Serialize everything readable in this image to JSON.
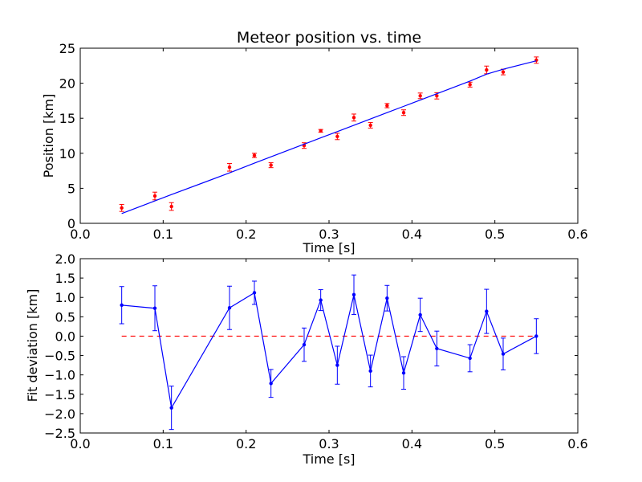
{
  "chart_data": [
    {
      "type": "scatter",
      "title": "Meteor position vs. time",
      "xlabel": "Time [s]",
      "ylabel": "Position [km]",
      "xlim": [
        0.0,
        0.6
      ],
      "ylim": [
        0,
        25
      ],
      "xticks": [
        0.0,
        0.1,
        0.2,
        0.3,
        0.4,
        0.5,
        0.6
      ],
      "xtick_labels": [
        "0.0",
        "0.1",
        "0.2",
        "0.3",
        "0.4",
        "0.5",
        "0.6"
      ],
      "yticks": [
        0,
        5,
        10,
        15,
        20,
        25
      ],
      "ytick_labels": [
        "0",
        "5",
        "10",
        "15",
        "20",
        "25"
      ],
      "grid": false,
      "colors": {
        "points": "#ff0000",
        "errorbars": "#ff0000",
        "fit": "#0000ff"
      },
      "series": [
        {
          "kind": "errorbar",
          "x": [
            0.05,
            0.09,
            0.11,
            0.18,
            0.21,
            0.23,
            0.27,
            0.29,
            0.31,
            0.33,
            0.35,
            0.37,
            0.39,
            0.41,
            0.43,
            0.47,
            0.49,
            0.51,
            0.55
          ],
          "y": [
            2.2,
            3.9,
            2.4,
            8.0,
            9.7,
            8.3,
            11.1,
            13.2,
            12.4,
            15.1,
            14.0,
            16.8,
            15.8,
            18.2,
            18.2,
            19.8,
            21.9,
            21.6,
            23.3
          ],
          "yerr": [
            0.5,
            0.55,
            0.55,
            0.55,
            0.3,
            0.35,
            0.4,
            0.2,
            0.45,
            0.5,
            0.4,
            0.3,
            0.4,
            0.4,
            0.45,
            0.35,
            0.55,
            0.4,
            0.45
          ]
        },
        {
          "kind": "line",
          "x": [
            0.05,
            0.09,
            0.11,
            0.18,
            0.21,
            0.23,
            0.27,
            0.29,
            0.31,
            0.33,
            0.35,
            0.37,
            0.39,
            0.41,
            0.43,
            0.47,
            0.49,
            0.51,
            0.55
          ],
          "y": [
            1.4,
            3.2,
            4.1,
            7.2,
            8.6,
            9.5,
            11.3,
            12.2,
            13.1,
            14.0,
            14.9,
            15.8,
            16.7,
            17.6,
            18.5,
            20.3,
            21.3,
            22.0,
            23.2
          ]
        }
      ]
    },
    {
      "type": "line",
      "title": "",
      "xlabel": "Time [s]",
      "ylabel": "Fit deviation [km]",
      "xlim": [
        0.0,
        0.6
      ],
      "ylim": [
        -2.5,
        2.0
      ],
      "xticks": [
        0.0,
        0.1,
        0.2,
        0.3,
        0.4,
        0.5,
        0.6
      ],
      "xtick_labels": [
        "0.0",
        "0.1",
        "0.2",
        "0.3",
        "0.4",
        "0.5",
        "0.6"
      ],
      "yticks": [
        -2.5,
        -2.0,
        -1.5,
        -1.0,
        -0.5,
        0.0,
        0.5,
        1.0,
        1.5,
        2.0
      ],
      "ytick_labels": [
        "−2.5",
        "−2.0",
        "−1.5",
        "−1.0",
        "−0.5",
        "0.0",
        "0.5",
        "1.0",
        "1.5",
        "2.0"
      ],
      "grid": false,
      "colors": {
        "line": "#0000ff",
        "zero_line": "#ff0000"
      },
      "zero_line": {
        "y": 0.0,
        "x_range": [
          0.05,
          0.55
        ],
        "style": "dashed"
      },
      "series": [
        {
          "kind": "errorbar-line",
          "x": [
            0.05,
            0.09,
            0.11,
            0.18,
            0.21,
            0.23,
            0.27,
            0.29,
            0.31,
            0.33,
            0.35,
            0.37,
            0.39,
            0.41,
            0.43,
            0.47,
            0.49,
            0.51,
            0.55
          ],
          "y": [
            0.8,
            0.72,
            -1.85,
            0.73,
            1.12,
            -1.22,
            -0.22,
            0.93,
            -0.75,
            1.07,
            -0.9,
            0.98,
            -0.95,
            0.55,
            -0.32,
            -0.57,
            0.64,
            -0.46,
            0.0
          ],
          "yerr": [
            0.48,
            0.58,
            0.56,
            0.56,
            0.3,
            0.36,
            0.43,
            0.27,
            0.49,
            0.51,
            0.41,
            0.33,
            0.42,
            0.43,
            0.45,
            0.35,
            0.57,
            0.41,
            0.45
          ]
        }
      ]
    }
  ]
}
